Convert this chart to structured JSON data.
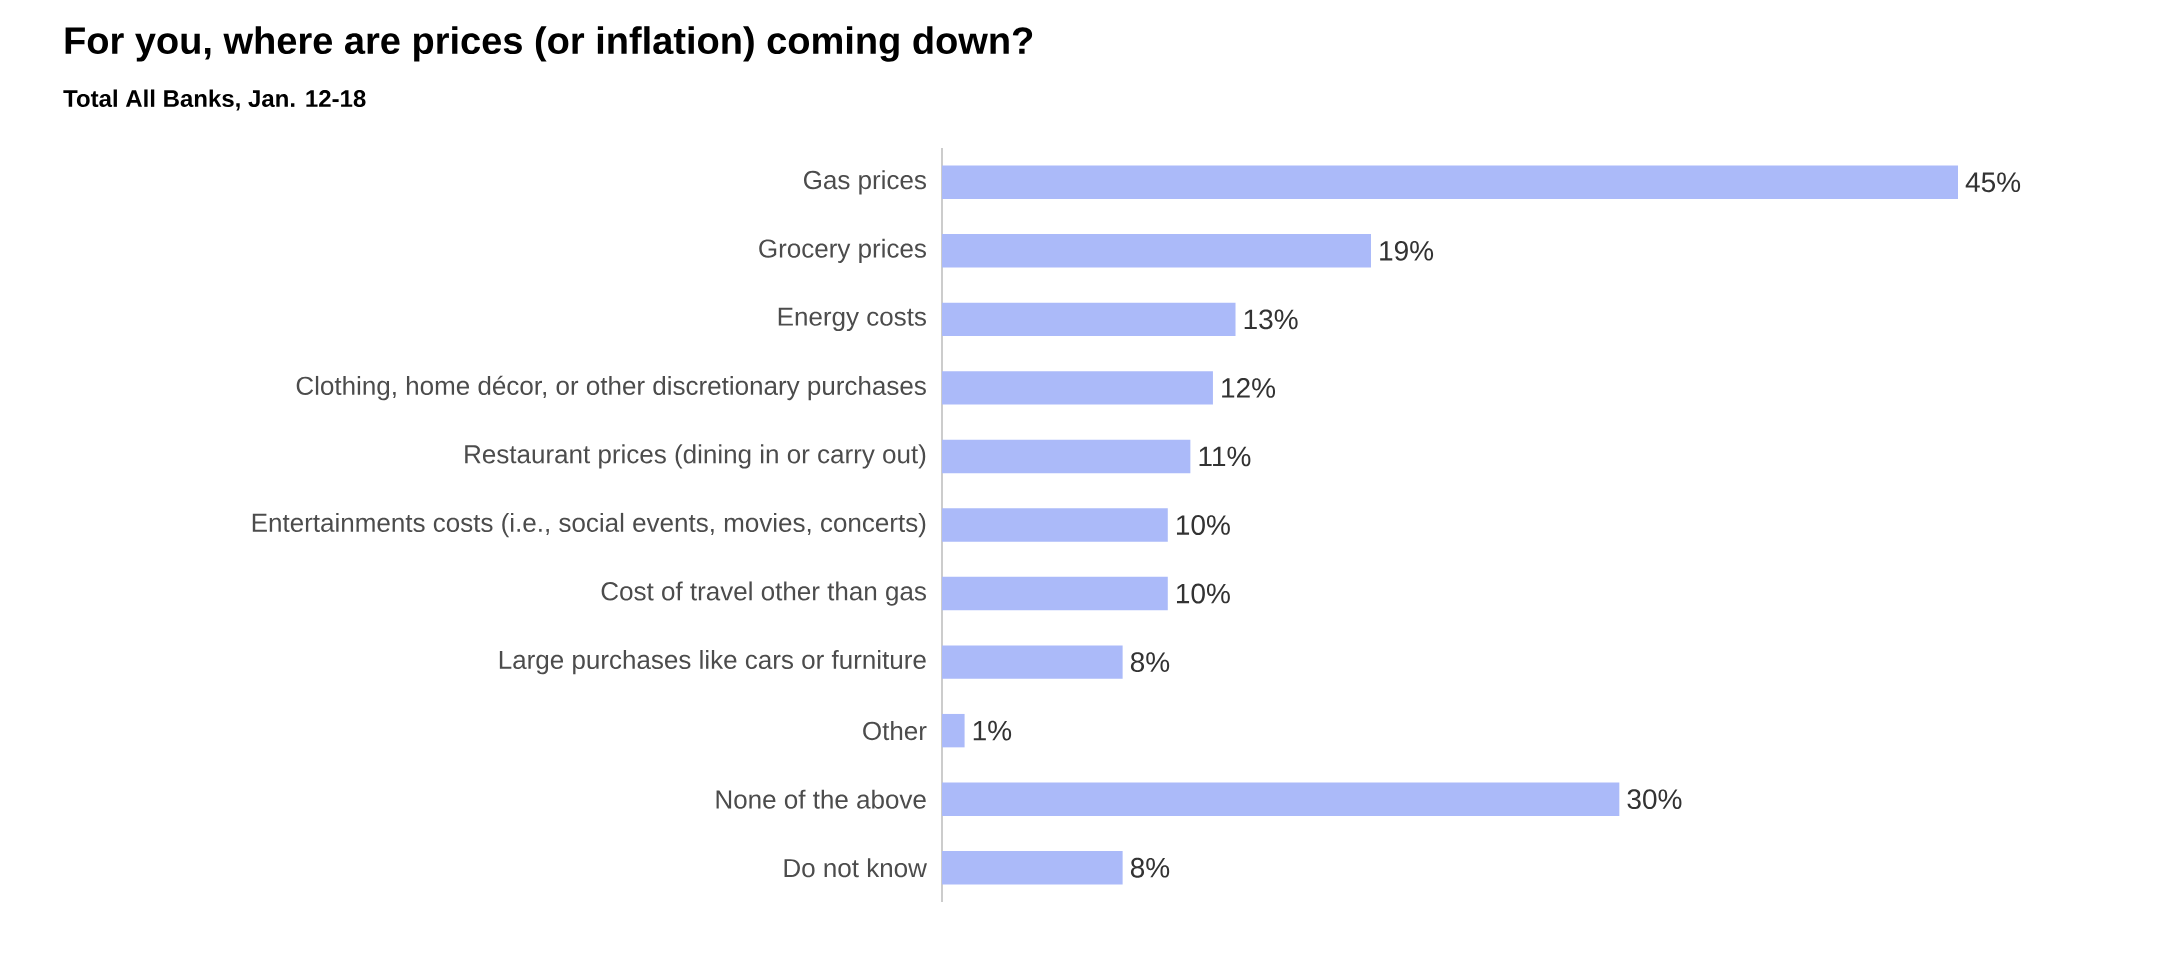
{
  "chart_data": {
    "type": "bar",
    "orientation": "horizontal",
    "title": "For you, where are prices (or inflation) coming down?",
    "subtitle": "Total All Banks, Jan. 12-18",
    "categories": [
      "Gas prices",
      "Grocery prices",
      "Energy costs",
      "Clothing, home décor, or other discretionary purchases",
      "Restaurant prices (dining in or carry out)",
      "Entertainments costs (i.e., social events, movies, concerts)",
      "Cost of travel other than gas",
      "Large purchases like cars or furniture",
      "Other",
      "None of the above",
      "Do not know"
    ],
    "values": [
      45,
      19,
      13,
      12,
      11,
      10,
      10,
      8,
      1,
      30,
      8
    ],
    "value_labels": [
      "45%",
      "19%",
      "13%",
      "12%",
      "11%",
      "10%",
      "10%",
      "8%",
      "1%",
      "30%",
      "8%"
    ],
    "color": "#abbaf9"
  }
}
